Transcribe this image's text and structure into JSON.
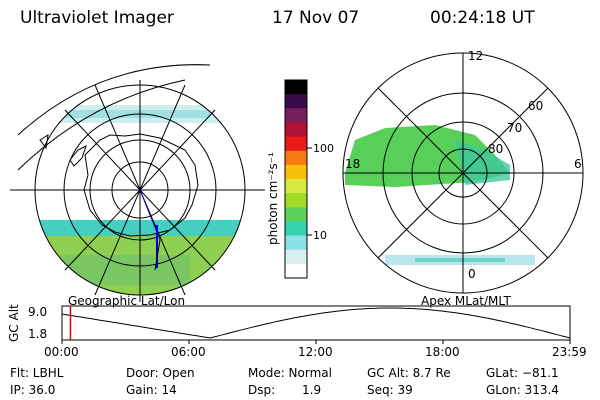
{
  "header": {
    "instrument": "Ultraviolet Imager",
    "date": "17 Nov 07",
    "time": "00:24:18 UT"
  },
  "map_labels": {
    "geographic": "Geographic Lat/Lon",
    "apex": "Apex MLat/MLT"
  },
  "apex": {
    "mlt_labels": {
      "top": "12",
      "left": "18",
      "right": "6",
      "bottom": "0"
    },
    "lat_labels": [
      "60",
      "70",
      "80"
    ]
  },
  "colorbar": {
    "unit_label": "photon cm⁻²s⁻¹",
    "ticks": [
      "100",
      "10"
    ],
    "colors": [
      "#000000",
      "#3b0a4a",
      "#7a1f5e",
      "#b01235",
      "#e81a1a",
      "#f47a10",
      "#f8c00a",
      "#d8e840",
      "#a0dc28",
      "#5ad05a",
      "#36d2b0",
      "#8ae2e8",
      "#d8f0f0",
      "#ffffff"
    ]
  },
  "timeline": {
    "ylabel": "GC Alt",
    "yticks": [
      "9.0",
      "1.8"
    ],
    "xticks": [
      "00:00",
      "06:00",
      "12:00",
      "18:00",
      "23:59"
    ],
    "cursor_hour": 0.4
  },
  "info": {
    "filter": "Flt: LBHL",
    "ip": "IP: 36.0",
    "door": "Door: Open",
    "gain": "Gain: 14",
    "mode": "Mode: Normal",
    "dsp_label": "Dsp:",
    "dsp_value": "1.9",
    "gc_alt": "GC Alt: 8.7 Re",
    "seq": "Seq: 39",
    "glat": "GLat: −81.1",
    "glon": "GLon: 313.4"
  }
}
